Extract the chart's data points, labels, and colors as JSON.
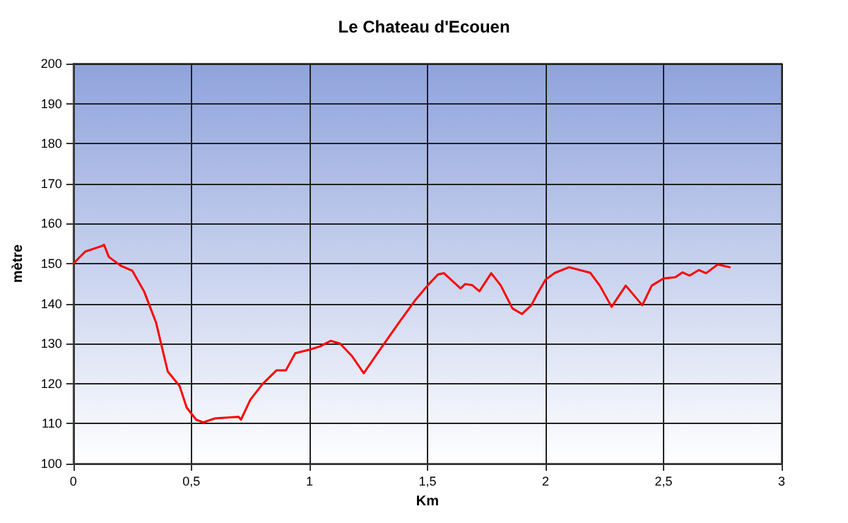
{
  "chart_data": {
    "type": "line",
    "title": "Le Chateau d'Ecouen",
    "xlabel": "Km",
    "ylabel": "mètre",
    "xlim": [
      0,
      3
    ],
    "xticks": [
      0,
      {
        "value": 0.5,
        "label": "0,5"
      },
      1,
      {
        "value": 1.5,
        "label": "1,5"
      },
      2,
      {
        "value": 2.5,
        "label": "2,5"
      },
      3
    ],
    "ylim": [
      100,
      200
    ],
    "yticks": [
      100,
      110,
      120,
      130,
      140,
      150,
      160,
      170,
      180,
      190,
      200
    ],
    "grid": true,
    "marker": "none",
    "line_style": "solid",
    "series": [
      {
        "color": "#ff0000",
        "x": [
          0,
          0.05,
          0.1,
          0.12,
          0.13,
          0.15,
          0.2,
          0.25,
          0.3,
          0.35,
          0.4,
          0.45,
          0.48,
          0.52,
          0.55,
          0.6,
          0.7,
          0.71,
          0.75,
          0.8,
          0.86,
          0.9,
          0.94,
          1.0,
          1.045,
          1.09,
          1.13,
          1.18,
          1.23,
          1.3,
          1.38,
          1.45,
          1.5,
          1.545,
          1.57,
          1.64,
          1.66,
          1.69,
          1.72,
          1.77,
          1.81,
          1.86,
          1.9,
          1.94,
          1.965,
          2.0,
          2.04,
          2.1,
          2.19,
          2.23,
          2.28,
          2.34,
          2.41,
          2.45,
          2.5,
          2.55,
          2.58,
          2.61,
          2.65,
          2.68,
          2.73,
          2.78
        ],
        "values": [
          150,
          153,
          154,
          154.4,
          154.7,
          151.7,
          149.5,
          148.2,
          143,
          135.3,
          123,
          119.4,
          114,
          111,
          110.3,
          111.3,
          111.7,
          111,
          116,
          119.8,
          123.3,
          123.3,
          127.6,
          128.5,
          129.3,
          130.7,
          130,
          126.9,
          122.6,
          128.6,
          135.3,
          141,
          144.5,
          147.3,
          147.6,
          143.8,
          144.9,
          144.6,
          143.1,
          147.6,
          144.6,
          138.8,
          137.4,
          139.6,
          142.4,
          146,
          147.7,
          149.1,
          147.7,
          144.5,
          139.2,
          144.5,
          139.6,
          144.5,
          146.3,
          146.6,
          147.8,
          147,
          148.4,
          147.6,
          149.8,
          149.1
        ]
      }
    ]
  }
}
